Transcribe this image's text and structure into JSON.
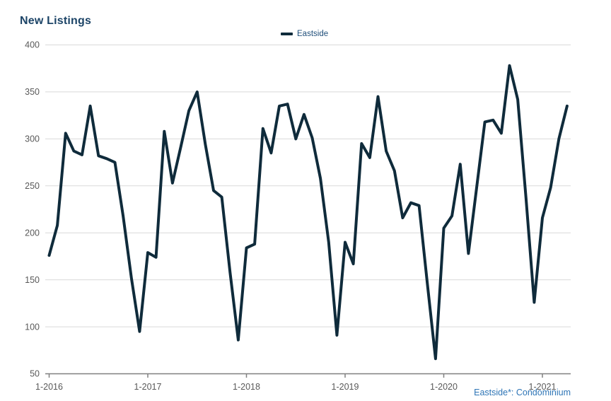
{
  "header": {
    "title": "New Listings"
  },
  "legend": {
    "label": "Eastside",
    "swatch_color": "#0f2b3b"
  },
  "footnote": {
    "text": "Eastside*: Condominium"
  },
  "colors": {
    "title": "#1c4467",
    "legend_text": "#1f4e79",
    "footnote": "#2e75b6",
    "tick_label": "#595959",
    "gridline": "#d9d9d9",
    "axis_line": "#808080",
    "series_line": "#0f2b3b",
    "background": "#ffffff"
  },
  "chart_data": {
    "type": "line",
    "title": "New Listings",
    "legend_position": "top-center",
    "grid": true,
    "ylabel": "",
    "xlabel": "",
    "ylim": [
      50,
      400
    ],
    "yticks": [
      400,
      350,
      300,
      250,
      200,
      150,
      100,
      50
    ],
    "xtick_labels": [
      "1-2016",
      "1-2017",
      "1-2018",
      "1-2019",
      "1-2020",
      "1-2021"
    ],
    "xtick_every_n_points": 12,
    "x": [
      "1-2016",
      "2-2016",
      "3-2016",
      "4-2016",
      "5-2016",
      "6-2016",
      "7-2016",
      "8-2016",
      "9-2016",
      "10-2016",
      "11-2016",
      "12-2016",
      "1-2017",
      "2-2017",
      "3-2017",
      "4-2017",
      "5-2017",
      "6-2017",
      "7-2017",
      "8-2017",
      "9-2017",
      "10-2017",
      "11-2017",
      "12-2017",
      "1-2018",
      "2-2018",
      "3-2018",
      "4-2018",
      "5-2018",
      "6-2018",
      "7-2018",
      "8-2018",
      "9-2018",
      "10-2018",
      "11-2018",
      "12-2018",
      "1-2019",
      "2-2019",
      "3-2019",
      "4-2019",
      "5-2019",
      "6-2019",
      "7-2019",
      "8-2019",
      "9-2019",
      "10-2019",
      "11-2019",
      "12-2019",
      "1-2020",
      "2-2020",
      "3-2020",
      "4-2020",
      "5-2020",
      "6-2020",
      "7-2020",
      "8-2020",
      "9-2020",
      "10-2020",
      "11-2020",
      "12-2020",
      "1-2021",
      "2-2021",
      "3-2021",
      "4-2021"
    ],
    "series": [
      {
        "name": "Eastside",
        "color": "#0f2b3b",
        "values": [
          176,
          208,
          306,
          287,
          283,
          335,
          282,
          279,
          275,
          218,
          152,
          95,
          179,
          174,
          308,
          253,
          291,
          330,
          350,
          294,
          245,
          238,
          158,
          86,
          184,
          188,
          311,
          285,
          335,
          337,
          300,
          326,
          301,
          258,
          190,
          91,
          190,
          167,
          295,
          280,
          345,
          287,
          266,
          216,
          232,
          229,
          146,
          66,
          205,
          218,
          273,
          178,
          248,
          318,
          320,
          306,
          378,
          342,
          237,
          126,
          216,
          248,
          300,
          335
        ]
      }
    ]
  }
}
